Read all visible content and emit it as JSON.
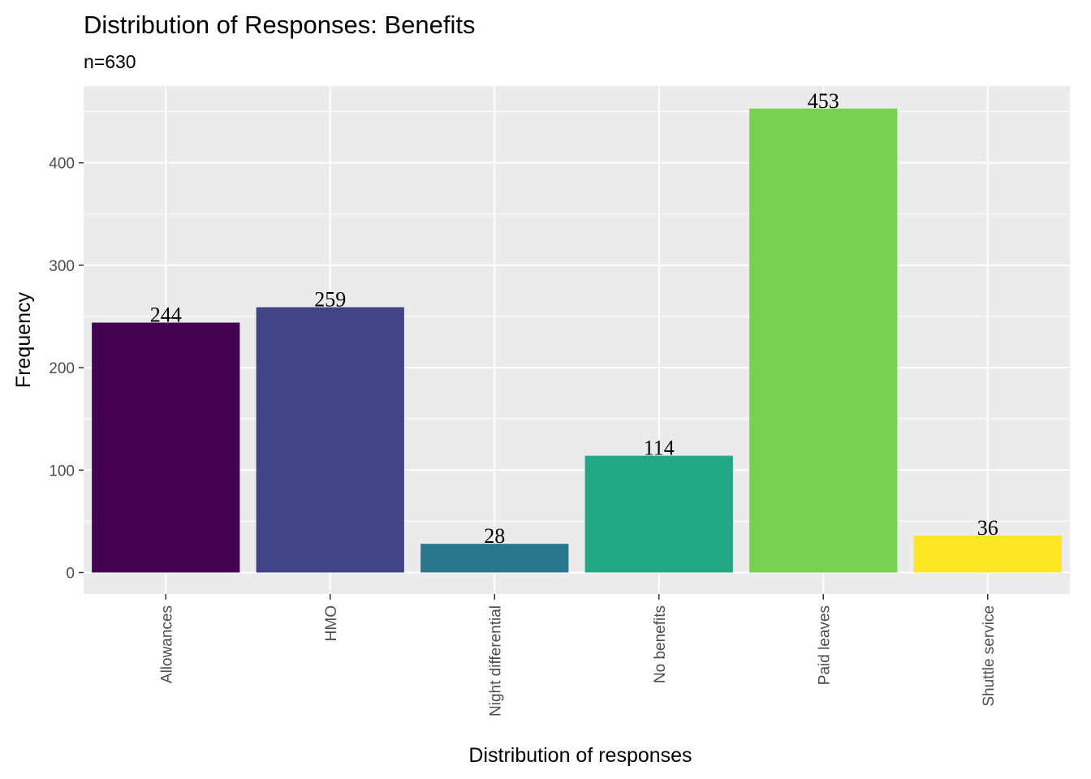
{
  "chart_data": {
    "type": "bar",
    "title": "Distribution of Responses: Benefits",
    "subtitle": "n=630",
    "xlabel": "Distribution of responses",
    "ylabel": "Frequency",
    "categories": [
      "Allowances",
      "HMO",
      "Night differential",
      "No benefits",
      "Paid leaves",
      "Shuttle service"
    ],
    "values": [
      244,
      259,
      28,
      114,
      453,
      36
    ],
    "data_labels": [
      "244",
      "259",
      "28",
      "114",
      "453",
      "36"
    ],
    "colors": [
      "#440154",
      "#414487",
      "#2A788E",
      "#22A884",
      "#7AD151",
      "#FDE725"
    ],
    "ylim": [
      -21,
      475
    ],
    "yticks": [
      0,
      100,
      200,
      300,
      400
    ],
    "ytick_labels": [
      "0",
      "100",
      "200",
      "300",
      "400"
    ],
    "grid": true,
    "panel_background": "#EBEBEB",
    "x_tick_label_rotation": "vertical",
    "legend": "none"
  }
}
